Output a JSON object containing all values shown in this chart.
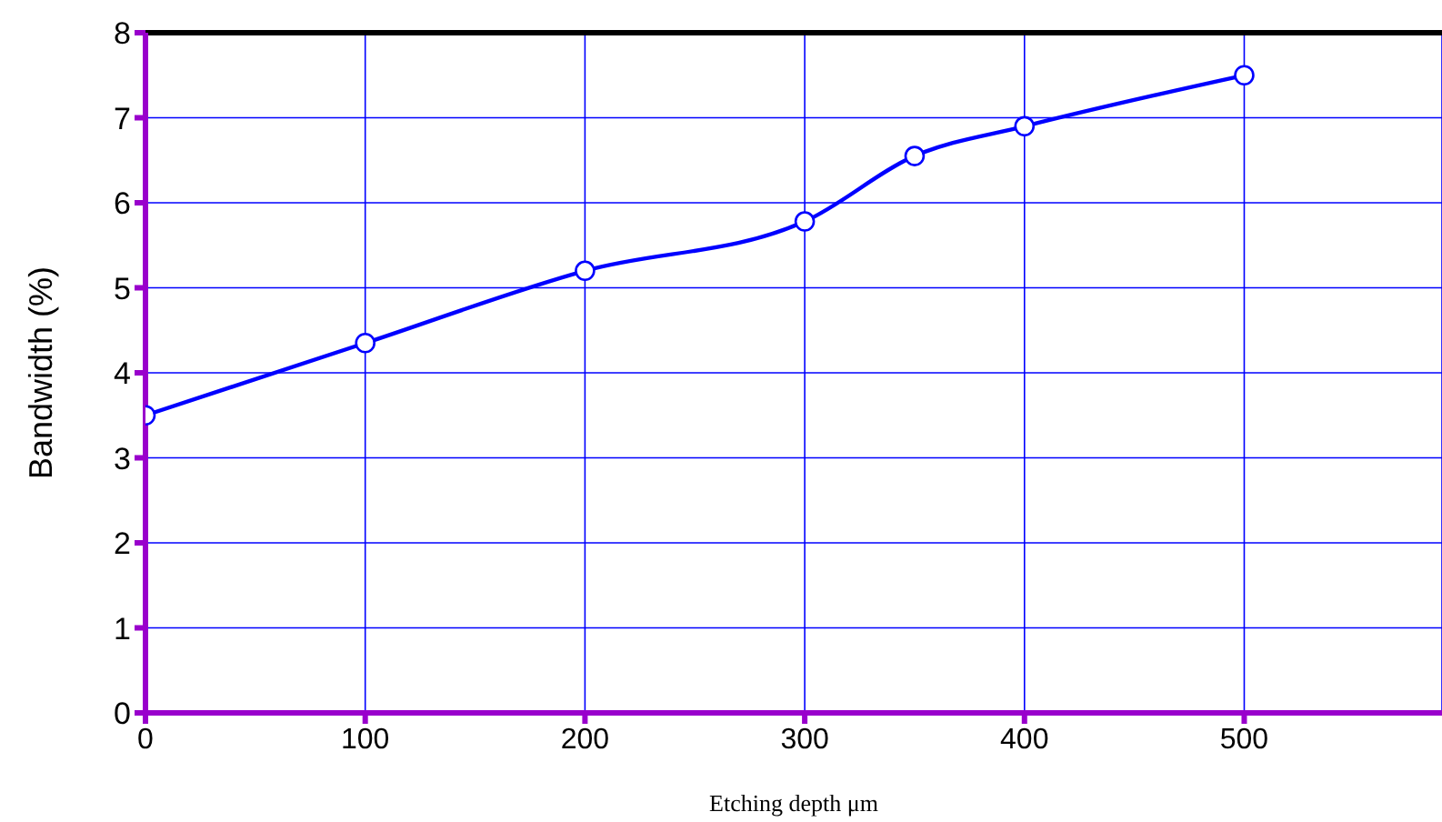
{
  "chart_data": {
    "type": "line",
    "xlabel": "Etching depth μm",
    "ylabel": "Bandwidth (%)",
    "x": [
      0,
      100,
      200,
      300,
      350,
      400,
      500
    ],
    "series": [
      {
        "color": "#0000ff",
        "values": [
          3.5,
          4.35,
          5.2,
          5.78,
          6.55,
          6.9,
          7.5
        ]
      }
    ],
    "xlim": [
      0,
      590
    ],
    "xticks": [
      0,
      100,
      200,
      300,
      400,
      500
    ],
    "ylim": [
      0,
      8
    ],
    "yticks": [
      0,
      1,
      2,
      3,
      4,
      5,
      6,
      7,
      8
    ],
    "grid": true,
    "marker": "circle",
    "line_style": "solid"
  }
}
